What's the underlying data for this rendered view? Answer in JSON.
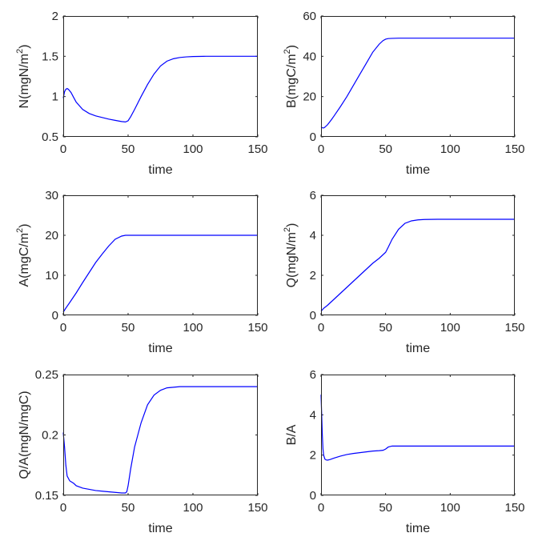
{
  "chart_data": [
    {
      "type": "line",
      "xlabel": "time",
      "ylabel": "N(mgN/m²)",
      "ylabel_parts": [
        "N(mgN/m",
        "2",
        ")"
      ],
      "xlim": [
        0,
        150
      ],
      "ylim": [
        0.5,
        2
      ],
      "xticks": [
        0,
        50,
        100,
        150
      ],
      "yticks": [
        0.5,
        1,
        1.5,
        2
      ],
      "xtick_labels": [
        "0",
        "50",
        "100",
        "150"
      ],
      "ytick_labels": [
        "0.5",
        "1",
        "1.5",
        "2"
      ],
      "series": [
        {
          "color": "#0000ff",
          "x": [
            0,
            1,
            2,
            3,
            4,
            6,
            8,
            10,
            15,
            20,
            25,
            30,
            35,
            40,
            45,
            48,
            50,
            52,
            55,
            60,
            65,
            70,
            75,
            80,
            85,
            90,
            95,
            100,
            110,
            120,
            130,
            140,
            150
          ],
          "y": [
            0.98,
            1.06,
            1.09,
            1.1,
            1.09,
            1.05,
            0.99,
            0.93,
            0.84,
            0.79,
            0.76,
            0.74,
            0.72,
            0.705,
            0.69,
            0.685,
            0.7,
            0.75,
            0.84,
            1.0,
            1.15,
            1.28,
            1.38,
            1.44,
            1.47,
            1.485,
            1.493,
            1.497,
            1.5,
            1.5,
            1.5,
            1.5,
            1.5
          ]
        }
      ]
    },
    {
      "type": "line",
      "xlabel": "time",
      "ylabel": "B(mgC/m²)",
      "ylabel_parts": [
        "B(mgC/m",
        "2",
        ")"
      ],
      "xlim": [
        0,
        150
      ],
      "ylim": [
        0,
        60
      ],
      "xticks": [
        0,
        50,
        100,
        150
      ],
      "yticks": [
        0,
        20,
        40,
        60
      ],
      "xtick_labels": [
        "0",
        "50",
        "100",
        "150"
      ],
      "ytick_labels": [
        "0",
        "20",
        "40",
        "60"
      ],
      "series": [
        {
          "color": "#0000ff",
          "x": [
            0,
            1,
            2,
            3,
            5,
            8,
            10,
            15,
            20,
            25,
            30,
            35,
            40,
            45,
            48,
            50,
            52,
            55,
            60,
            70,
            80,
            100,
            120,
            150
          ],
          "y": [
            5,
            4.5,
            4.4,
            4.8,
            6,
            8.5,
            10.3,
            15,
            20,
            25.5,
            31,
            36.5,
            42,
            46,
            47.8,
            48.5,
            48.8,
            48.9,
            49,
            49,
            49,
            49,
            49,
            49
          ]
        }
      ]
    },
    {
      "type": "line",
      "xlabel": "time",
      "ylabel": "A(mgC/m²)",
      "ylabel_parts": [
        "A(mgC/m",
        "2",
        ")"
      ],
      "xlim": [
        0,
        150
      ],
      "ylim": [
        0,
        30
      ],
      "xticks": [
        0,
        50,
        100,
        150
      ],
      "yticks": [
        0,
        10,
        20,
        30
      ],
      "xtick_labels": [
        "0",
        "50",
        "100",
        "150"
      ],
      "ytick_labels": [
        "0",
        "10",
        "20",
        "30"
      ],
      "series": [
        {
          "color": "#0000ff",
          "x": [
            0,
            2,
            5,
            10,
            15,
            20,
            25,
            30,
            35,
            40,
            45,
            48,
            50,
            60,
            80,
            100,
            120,
            150
          ],
          "y": [
            0.8,
            1.8,
            3.2,
            5.6,
            8.2,
            10.7,
            13.2,
            15.3,
            17.3,
            19.0,
            19.8,
            20,
            20,
            20,
            20,
            20,
            20,
            20
          ]
        }
      ]
    },
    {
      "type": "line",
      "xlabel": "time",
      "ylabel": "Q(mgN/m²)",
      "ylabel_parts": [
        "Q(mgN/m",
        "2",
        ")"
      ],
      "xlim": [
        0,
        150
      ],
      "ylim": [
        0,
        6
      ],
      "xticks": [
        0,
        50,
        100,
        150
      ],
      "yticks": [
        0,
        2,
        4,
        6
      ],
      "xtick_labels": [
        "0",
        "50",
        "100",
        "150"
      ],
      "ytick_labels": [
        "0",
        "2",
        "4",
        "6"
      ],
      "series": [
        {
          "color": "#0000ff",
          "x": [
            0,
            2,
            5,
            10,
            15,
            20,
            25,
            30,
            35,
            40,
            45,
            50,
            52,
            55,
            60,
            65,
            70,
            75,
            80,
            90,
            100,
            120,
            150
          ],
          "y": [
            0.2,
            0.35,
            0.5,
            0.8,
            1.1,
            1.4,
            1.7,
            2.0,
            2.3,
            2.6,
            2.85,
            3.15,
            3.4,
            3.8,
            4.3,
            4.6,
            4.72,
            4.77,
            4.79,
            4.8,
            4.8,
            4.8,
            4.8
          ]
        }
      ]
    },
    {
      "type": "line",
      "xlabel": "time",
      "ylabel": "Q/A(mgN/mgC)",
      "ylabel_parts": [
        "Q/A(mgN/mgC)",
        "",
        ""
      ],
      "xlim": [
        0,
        150
      ],
      "ylim": [
        0.15,
        0.25
      ],
      "xticks": [
        0,
        50,
        100,
        150
      ],
      "yticks": [
        0.15,
        0.2,
        0.25
      ],
      "xtick_labels": [
        "0",
        "50",
        "100",
        "150"
      ],
      "ytick_labels": [
        "0.15",
        "0.2",
        "0.25"
      ],
      "series": [
        {
          "color": "#0000ff",
          "x": [
            0,
            1,
            2,
            3,
            5,
            8,
            10,
            15,
            20,
            25,
            30,
            35,
            40,
            45,
            48,
            49,
            50,
            52,
            55,
            60,
            65,
            70,
            75,
            80,
            85,
            90,
            100,
            120,
            150
          ],
          "y": [
            0.202,
            0.19,
            0.175,
            0.166,
            0.162,
            0.16,
            0.158,
            0.156,
            0.155,
            0.154,
            0.1535,
            0.153,
            0.1525,
            0.152,
            0.152,
            0.153,
            0.158,
            0.172,
            0.19,
            0.21,
            0.225,
            0.233,
            0.237,
            0.239,
            0.2395,
            0.24,
            0.24,
            0.24,
            0.24
          ]
        }
      ]
    },
    {
      "type": "line",
      "xlabel": "time",
      "ylabel": "B/A",
      "ylabel_parts": [
        "B/A",
        "",
        ""
      ],
      "xlim": [
        0,
        150
      ],
      "ylim": [
        0,
        6
      ],
      "xticks": [
        0,
        50,
        100,
        150
      ],
      "yticks": [
        0,
        2,
        4,
        6
      ],
      "xtick_labels": [
        "0",
        "50",
        "100",
        "150"
      ],
      "ytick_labels": [
        "0",
        "2",
        "4",
        "6"
      ],
      "series": [
        {
          "color": "#0000ff",
          "x": [
            0,
            0.5,
            1,
            1.5,
            2,
            3,
            4,
            5,
            7,
            10,
            15,
            20,
            25,
            30,
            35,
            40,
            45,
            48,
            50,
            52,
            55,
            60,
            80,
            100,
            120,
            150
          ],
          "y": [
            5.0,
            4.0,
            3.0,
            2.3,
            2.0,
            1.8,
            1.76,
            1.75,
            1.78,
            1.85,
            1.95,
            2.03,
            2.08,
            2.12,
            2.16,
            2.2,
            2.22,
            2.24,
            2.3,
            2.4,
            2.45,
            2.45,
            2.45,
            2.45,
            2.45,
            2.45
          ]
        }
      ]
    }
  ]
}
